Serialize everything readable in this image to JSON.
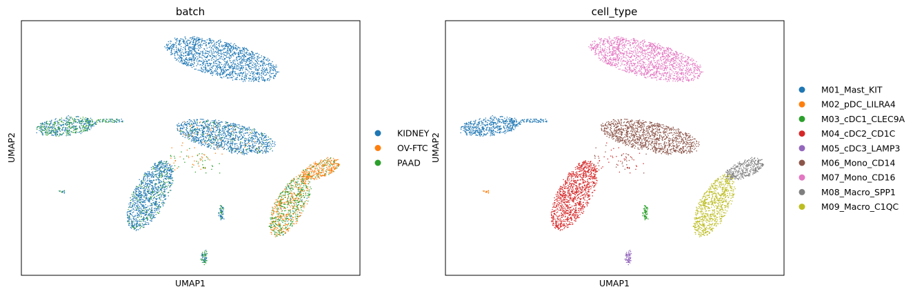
{
  "chart_data": [
    {
      "type": "scatter",
      "title": "batch",
      "xlabel": "UMAP1",
      "ylabel": "UMAP2",
      "legend_position": "right",
      "grid": false,
      "legend": [
        {
          "label": "KIDNEY",
          "color": "#1f77b4"
        },
        {
          "label": "OV-FTC",
          "color": "#ff7f0e"
        },
        {
          "label": "PAAD",
          "color": "#2ca02c"
        }
      ]
    },
    {
      "type": "scatter",
      "title": "cell_type",
      "xlabel": "UMAP1",
      "ylabel": "UMAP2",
      "legend_position": "right",
      "grid": false,
      "legend": [
        {
          "label": "M01_Mast_KIT",
          "color": "#1f77b4"
        },
        {
          "label": "M02_pDC_LILRA4",
          "color": "#ff7f0e"
        },
        {
          "label": "M03_cDC1_CLEC9A",
          "color": "#2ca02c"
        },
        {
          "label": "M04_cDC2_CD1C",
          "color": "#d62728"
        },
        {
          "label": "M05_cDC3_LAMP3",
          "color": "#9467bd"
        },
        {
          "label": "M06_Mono_CD14",
          "color": "#8c564b"
        },
        {
          "label": "M07_Mono_CD16",
          "color": "#e377c2"
        },
        {
          "label": "M08_Macro_SPP1",
          "color": "#7f7f7f"
        },
        {
          "label": "M09_Macro_C1QC",
          "color": "#bcbd22"
        }
      ]
    }
  ]
}
